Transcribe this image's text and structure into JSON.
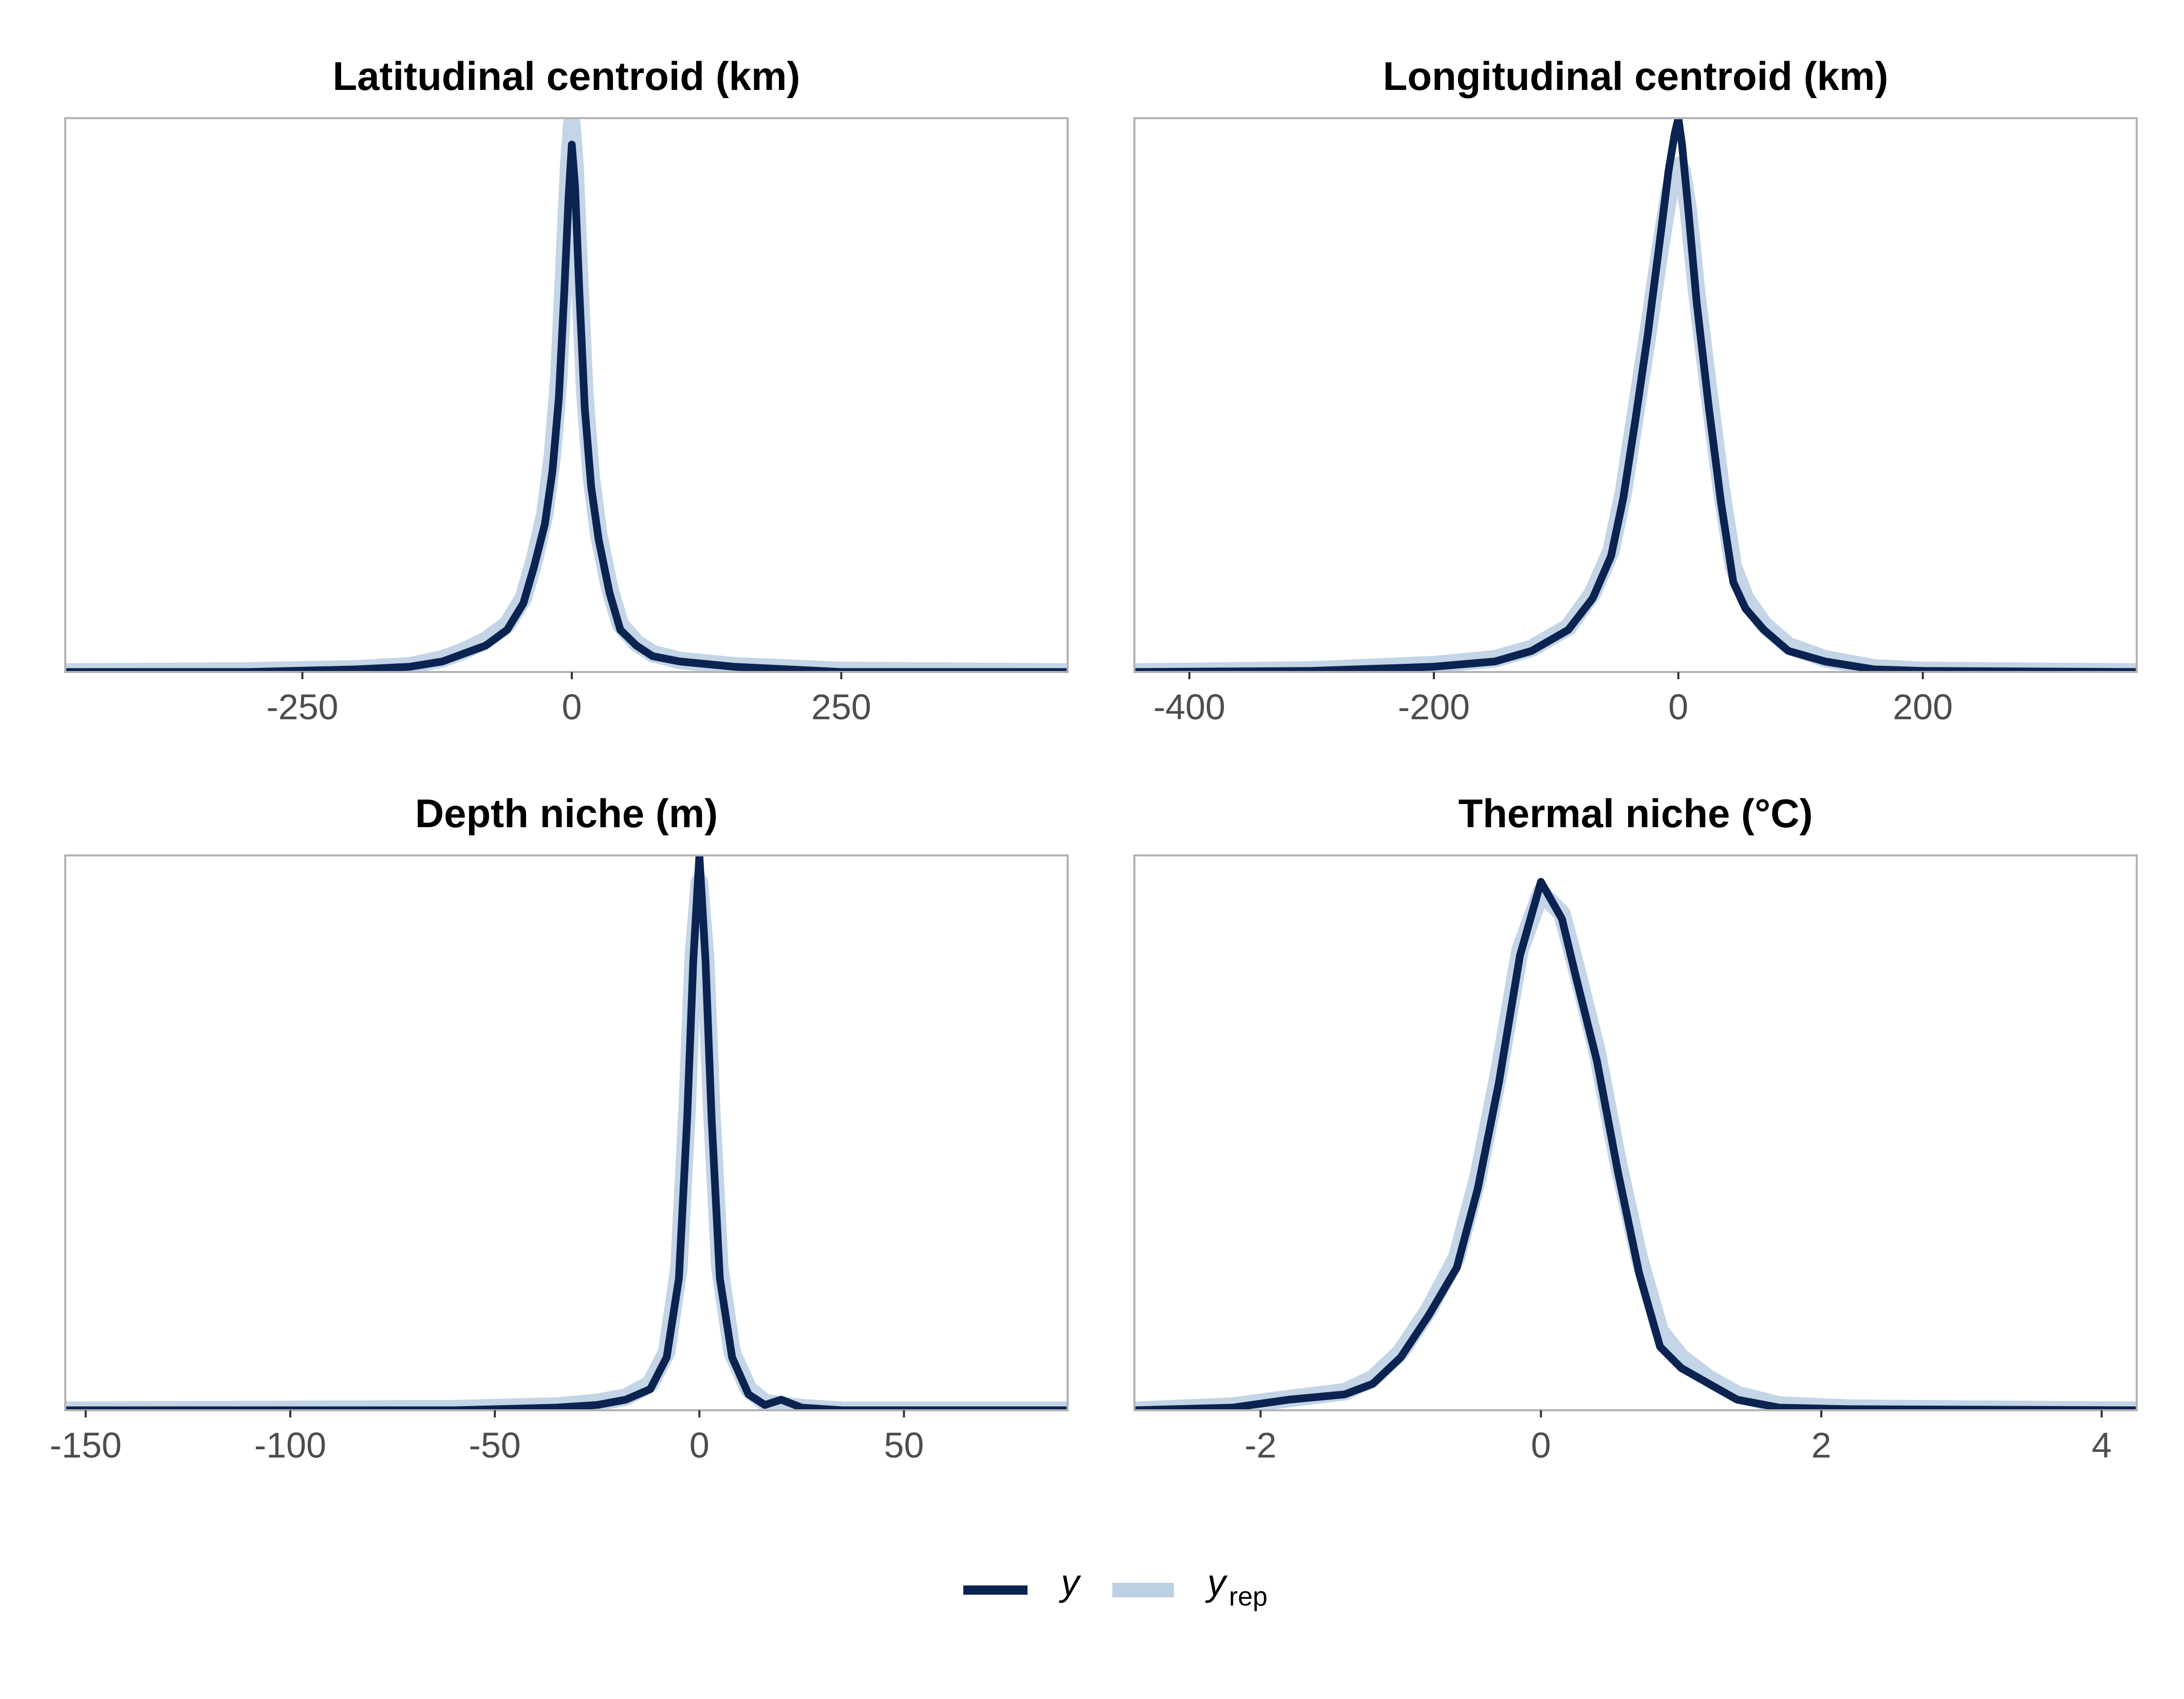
{
  "colors": {
    "y": "#0b2350",
    "yrep": "#bcd0e3",
    "frame": "#b3b3b3",
    "tick_text": "#4d4d4d"
  },
  "legend": {
    "position": "bottom",
    "items": [
      {
        "label": "y",
        "sub": ""
      },
      {
        "label": "y",
        "sub": "rep"
      }
    ]
  },
  "chart_data": [
    {
      "type": "line",
      "title": "Latitudinal centroid (km)",
      "xlim": [
        -470,
        460
      ],
      "ylim": [
        0,
        1.05
      ],
      "xticks": [
        -250,
        0,
        250
      ],
      "xtick_labels": [
        "-250",
        "0",
        "250"
      ],
      "grid": false,
      "series": [
        {
          "name": "y",
          "x": [
            -470,
            -300,
            -200,
            -150,
            -120,
            -100,
            -80,
            -60,
            -45,
            -35,
            -25,
            -18,
            -12,
            -7,
            -3,
            0,
            3,
            7,
            12,
            18,
            25,
            35,
            45,
            60,
            75,
            100,
            150,
            250,
            460
          ],
          "y": [
            0,
            0,
            0.005,
            0.01,
            0.02,
            0.035,
            0.05,
            0.08,
            0.13,
            0.2,
            0.28,
            0.38,
            0.52,
            0.72,
            0.9,
            1.0,
            0.92,
            0.72,
            0.5,
            0.35,
            0.25,
            0.15,
            0.08,
            0.05,
            0.03,
            0.02,
            0.01,
            0,
            0
          ]
        },
        {
          "name": "y_rep",
          "x": [
            -470,
            -300,
            -200,
            -150,
            -120,
            -100,
            -80,
            -60,
            -45,
            -35,
            -25,
            -18,
            -12,
            -7,
            -3,
            0,
            3,
            7,
            12,
            18,
            25,
            35,
            45,
            60,
            75,
            100,
            150,
            250,
            460
          ],
          "y": [
            0,
            0.002,
            0.006,
            0.012,
            0.025,
            0.04,
            0.06,
            0.09,
            0.14,
            0.21,
            0.3,
            0.41,
            0.56,
            0.78,
            0.96,
            1.04,
            0.96,
            0.76,
            0.53,
            0.37,
            0.26,
            0.16,
            0.09,
            0.055,
            0.035,
            0.022,
            0.012,
            0.003,
            0
          ]
        }
      ]
    },
    {
      "type": "line",
      "title": "Longitudinal centroid (km)",
      "xlim": [
        -445,
        375
      ],
      "ylim": [
        0,
        1.05
      ],
      "xticks": [
        -400,
        -200,
        0,
        200
      ],
      "xtick_labels": [
        "-400",
        "-200",
        "0",
        "200"
      ],
      "grid": false,
      "series": [
        {
          "name": "y",
          "x": [
            -445,
            -300,
            -200,
            -150,
            -120,
            -90,
            -70,
            -55,
            -45,
            -35,
            -25,
            -15,
            -8,
            -3,
            0,
            3,
            8,
            15,
            25,
            35,
            45,
            55,
            70,
            90,
            120,
            160,
            200,
            375
          ],
          "y": [
            0,
            0.002,
            0.01,
            0.02,
            0.04,
            0.08,
            0.14,
            0.22,
            0.33,
            0.48,
            0.64,
            0.82,
            0.95,
            1.02,
            1.05,
            1.0,
            0.88,
            0.7,
            0.5,
            0.32,
            0.17,
            0.12,
            0.08,
            0.04,
            0.02,
            0.005,
            0.002,
            0
          ]
        },
        {
          "name": "y_rep",
          "x": [
            -445,
            -300,
            -200,
            -150,
            -120,
            -90,
            -70,
            -55,
            -45,
            -35,
            -25,
            -15,
            -8,
            -3,
            0,
            3,
            8,
            15,
            25,
            35,
            45,
            55,
            70,
            90,
            120,
            160,
            200,
            375
          ],
          "y": [
            0,
            0.004,
            0.014,
            0.025,
            0.045,
            0.085,
            0.15,
            0.23,
            0.34,
            0.49,
            0.64,
            0.8,
            0.9,
            0.95,
            0.96,
            0.95,
            0.88,
            0.72,
            0.53,
            0.35,
            0.2,
            0.14,
            0.09,
            0.05,
            0.025,
            0.008,
            0.003,
            0
          ]
        }
      ]
    },
    {
      "type": "line",
      "title": "Depth niche (m)",
      "xlim": [
        -155,
        90
      ],
      "ylim": [
        0,
        1.05
      ],
      "xticks": [
        -150,
        -100,
        -50,
        0,
        50
      ],
      "xtick_labels": [
        "-150",
        "-100",
        "-50",
        "0",
        "50"
      ],
      "grid": false,
      "series": [
        {
          "name": "y",
          "x": [
            -155,
            -60,
            -35,
            -25,
            -18,
            -12,
            -8,
            -5,
            -3,
            -1.5,
            0,
            1.5,
            3,
            5,
            8,
            12,
            16,
            20,
            25,
            35,
            90
          ],
          "y": [
            0,
            0,
            0.005,
            0.01,
            0.02,
            0.04,
            0.1,
            0.25,
            0.55,
            0.85,
            1.05,
            0.85,
            0.55,
            0.25,
            0.1,
            0.03,
            0.01,
            0.02,
            0.005,
            0,
            0
          ]
        },
        {
          "name": "y_rep",
          "x": [
            -155,
            -60,
            -35,
            -25,
            -18,
            -12,
            -8,
            -5,
            -3,
            -1.5,
            0,
            1.5,
            3,
            5,
            8,
            12,
            16,
            20,
            25,
            35,
            90
          ],
          "y": [
            0,
            0.003,
            0.008,
            0.015,
            0.025,
            0.05,
            0.11,
            0.27,
            0.57,
            0.86,
            1.0,
            0.86,
            0.57,
            0.27,
            0.11,
            0.04,
            0.015,
            0.01,
            0.005,
            0,
            0
          ]
        }
      ]
    },
    {
      "type": "line",
      "title": "Thermal niche (°C)",
      "xlim": [
        -2.9,
        4.25
      ],
      "ylim": [
        0,
        1.05
      ],
      "xticks": [
        -2,
        0,
        2,
        4
      ],
      "xtick_labels": [
        "-2",
        "0",
        "2",
        "4"
      ],
      "grid": false,
      "series": [
        {
          "name": "y",
          "x": [
            -2.9,
            -2.2,
            -1.8,
            -1.4,
            -1.2,
            -1.0,
            -0.8,
            -0.6,
            -0.45,
            -0.3,
            -0.15,
            0,
            0.15,
            0.25,
            0.4,
            0.55,
            0.7,
            0.85,
            1.0,
            1.2,
            1.4,
            1.7,
            2.2,
            4.25
          ],
          "y": [
            0,
            0.005,
            0.02,
            0.03,
            0.05,
            0.1,
            0.18,
            0.27,
            0.42,
            0.62,
            0.86,
            1.0,
            0.93,
            0.82,
            0.66,
            0.45,
            0.26,
            0.12,
            0.08,
            0.05,
            0.02,
            0.005,
            0.002,
            0
          ]
        },
        {
          "name": "y_rep",
          "x": [
            -2.9,
            -2.2,
            -1.8,
            -1.4,
            -1.2,
            -1.0,
            -0.8,
            -0.6,
            -0.45,
            -0.3,
            -0.15,
            0,
            0.15,
            0.25,
            0.4,
            0.55,
            0.7,
            0.85,
            1.0,
            1.2,
            1.4,
            1.7,
            2.2,
            4.25
          ],
          "y": [
            0,
            0.008,
            0.022,
            0.035,
            0.06,
            0.11,
            0.19,
            0.29,
            0.44,
            0.64,
            0.87,
            0.98,
            0.94,
            0.84,
            0.68,
            0.47,
            0.29,
            0.15,
            0.1,
            0.06,
            0.03,
            0.01,
            0.004,
            0
          ]
        }
      ]
    }
  ]
}
